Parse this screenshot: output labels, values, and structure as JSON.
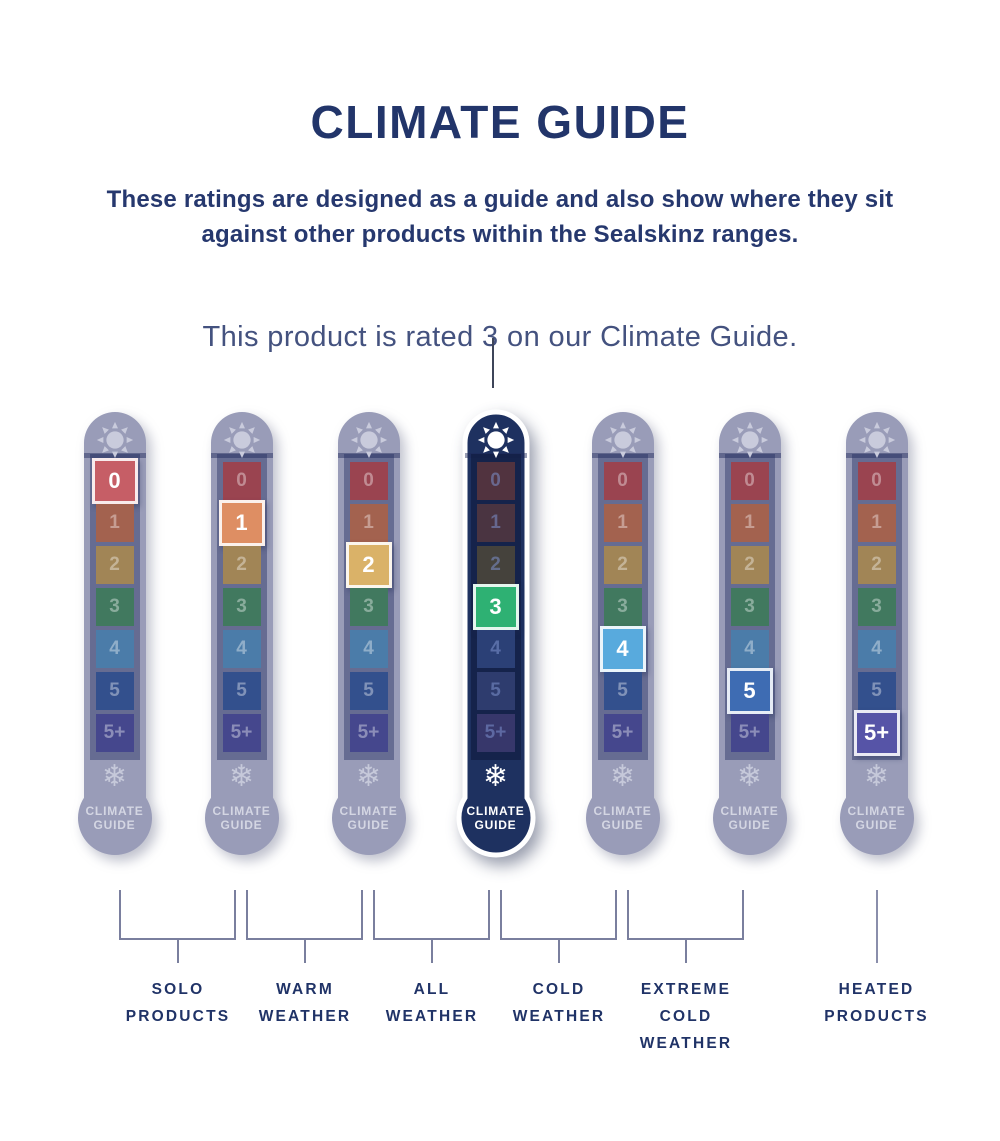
{
  "header": {
    "title": "CLIMATE GUIDE",
    "subtitle": "These ratings are designed as a guide and also show where they sit against other products within the Sealskinz ranges.",
    "rating_note": "This product is rated 3 on our Climate Guide.",
    "product_rating": "3"
  },
  "scale": {
    "levels": [
      "0",
      "1",
      "2",
      "3",
      "4",
      "5",
      "5+"
    ],
    "bulb_label": "CLIMATE GUIDE",
    "top_icon": "sun",
    "bottom_icon": "snowflake"
  },
  "thermometers": [
    {
      "highlighted_level": "0",
      "active": false
    },
    {
      "highlighted_level": "1",
      "active": false
    },
    {
      "highlighted_level": "2",
      "active": false
    },
    {
      "highlighted_level": "3",
      "active": true
    },
    {
      "highlighted_level": "4",
      "active": false
    },
    {
      "highlighted_level": "5",
      "active": false
    },
    {
      "highlighted_level": "5+",
      "active": false
    }
  ],
  "groups": [
    {
      "label": "SOLO PRODUCTS",
      "from": 0,
      "to": 1
    },
    {
      "label": "WARM WEATHER",
      "from": 1,
      "to": 2
    },
    {
      "label": "ALL WEATHER",
      "from": 2,
      "to": 3
    },
    {
      "label": "COLD WEATHER",
      "from": 3,
      "to": 4
    },
    {
      "label": "EXTREME COLD WEATHER",
      "from": 4,
      "to": 5
    },
    {
      "label": "HEATED PRODUCTS",
      "from": 6,
      "to": 6
    }
  ],
  "colors": {
    "heading_navy": "#22356A",
    "note_text": "#44527F",
    "active_body": "#1E3160",
    "muted_body": "#999CB8",
    "bracket_line": "#7A7F9E",
    "level_highlight": [
      "#C65E66",
      "#DE8E63",
      "#DAB268",
      "#2EB173",
      "#58AADD",
      "#3E6CB3",
      "#5654A7"
    ],
    "level_muted": [
      "#9A4450",
      "#A3624F",
      "#A18556",
      "#41795F",
      "#4B7CA9",
      "#33508D",
      "#45478D"
    ],
    "level_active_dim": [
      "#51333F",
      "#4A3441",
      "#45423C",
      "#2EB173",
      "#2B4076",
      "#2E3C6E",
      "#37376B"
    ]
  }
}
